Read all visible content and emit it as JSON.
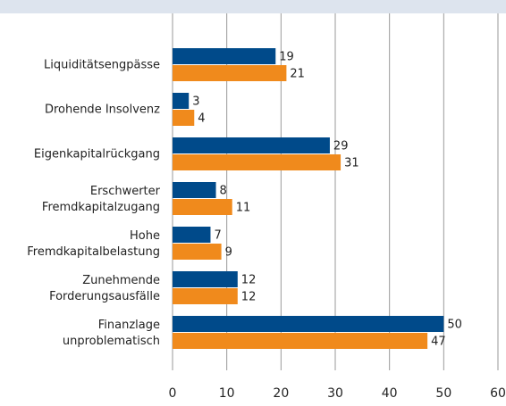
{
  "chart_data": {
    "type": "hbar",
    "categories": [
      "Liquiditätsengpässe",
      "Drohende Insolvenz",
      "Eigenkapitalrückgang",
      "Erschwerter\nFremdkapitalzugang",
      "Hohe\nFremdkapitalbelastung",
      "Zunehmende\nForderungsausfälle",
      "Finanzlage\nunproblematisch"
    ],
    "series": [
      {
        "color": "#004a8a",
        "values": [
          19,
          3,
          29,
          8,
          7,
          12,
          50
        ]
      },
      {
        "color": "#f08a1c",
        "values": [
          21,
          4,
          31,
          11,
          9,
          12,
          47
        ]
      }
    ],
    "xlim": [
      0,
      60
    ],
    "xticks": [
      0,
      10,
      20,
      30,
      40,
      50,
      60
    ],
    "grid": true
  }
}
